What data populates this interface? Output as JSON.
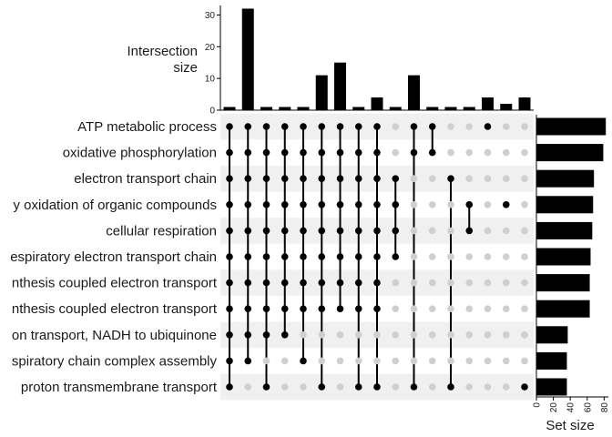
{
  "chart_data": {
    "type": "upset",
    "intersection_axis": {
      "title_line1": "Intersection",
      "title_line2": "size",
      "ticks": [
        0,
        10,
        20,
        30
      ],
      "ylim": [
        0,
        33
      ]
    },
    "set_size_axis": {
      "title": "Set size",
      "ticks": [
        0,
        20,
        40,
        60,
        80
      ],
      "xlim": [
        0,
        85
      ]
    },
    "sets": [
      {
        "name": "ATP metabolic process",
        "size": 82
      },
      {
        "name": "oxidative phosphorylation",
        "size": 79
      },
      {
        "name": "electron transport chain",
        "size": 68
      },
      {
        "name": "y oxidation of organic compounds",
        "size": 67
      },
      {
        "name": "cellular respiration",
        "size": 66
      },
      {
        "name": "espiratory electron transport chain",
        "size": 64
      },
      {
        "name": "nthesis coupled electron transport",
        "size": 63
      },
      {
        "name": "nthesis coupled electron transport",
        "size": 63
      },
      {
        "name": "on transport, NADH to ubiquinone",
        "size": 37
      },
      {
        "name": "spiratory chain complex assembly",
        "size": 36
      },
      {
        "name": "proton transmembrane transport",
        "size": 36
      }
    ],
    "intersections": [
      {
        "size": 1,
        "members": [
          0,
          1,
          2,
          3,
          4,
          5,
          6,
          7,
          8,
          9,
          10
        ]
      },
      {
        "size": 32,
        "members": [
          0,
          1,
          2,
          3,
          4,
          5,
          6,
          7,
          8,
          9
        ]
      },
      {
        "size": 1,
        "members": [
          0,
          1,
          2,
          3,
          4,
          5,
          6,
          7,
          8,
          10
        ]
      },
      {
        "size": 1,
        "members": [
          0,
          1,
          2,
          3,
          4,
          5,
          6,
          7,
          8
        ]
      },
      {
        "size": 1,
        "members": [
          0,
          1,
          2,
          3,
          4,
          5,
          6,
          7,
          9
        ]
      },
      {
        "size": 11,
        "members": [
          0,
          1,
          2,
          3,
          4,
          5,
          6,
          7,
          10
        ]
      },
      {
        "size": 15,
        "members": [
          0,
          1,
          2,
          3,
          4,
          5,
          6,
          7
        ]
      },
      {
        "size": 1,
        "members": [
          0,
          1,
          2,
          3,
          4,
          5,
          6,
          7,
          10
        ]
      },
      {
        "size": 4,
        "members": [
          0,
          1,
          2,
          3,
          4,
          5,
          6,
          7,
          10
        ]
      },
      {
        "size": 1,
        "members": [
          2,
          3,
          4,
          5
        ]
      },
      {
        "size": 11,
        "members": [
          0,
          1,
          10
        ]
      },
      {
        "size": 1,
        "members": [
          0,
          1
        ]
      },
      {
        "size": 1,
        "members": [
          2,
          10
        ]
      },
      {
        "size": 1,
        "members": [
          3,
          4
        ]
      },
      {
        "size": 4,
        "members": [
          0
        ]
      },
      {
        "size": 2,
        "members": [
          3
        ]
      },
      {
        "size": 4,
        "members": [
          10
        ]
      }
    ]
  }
}
